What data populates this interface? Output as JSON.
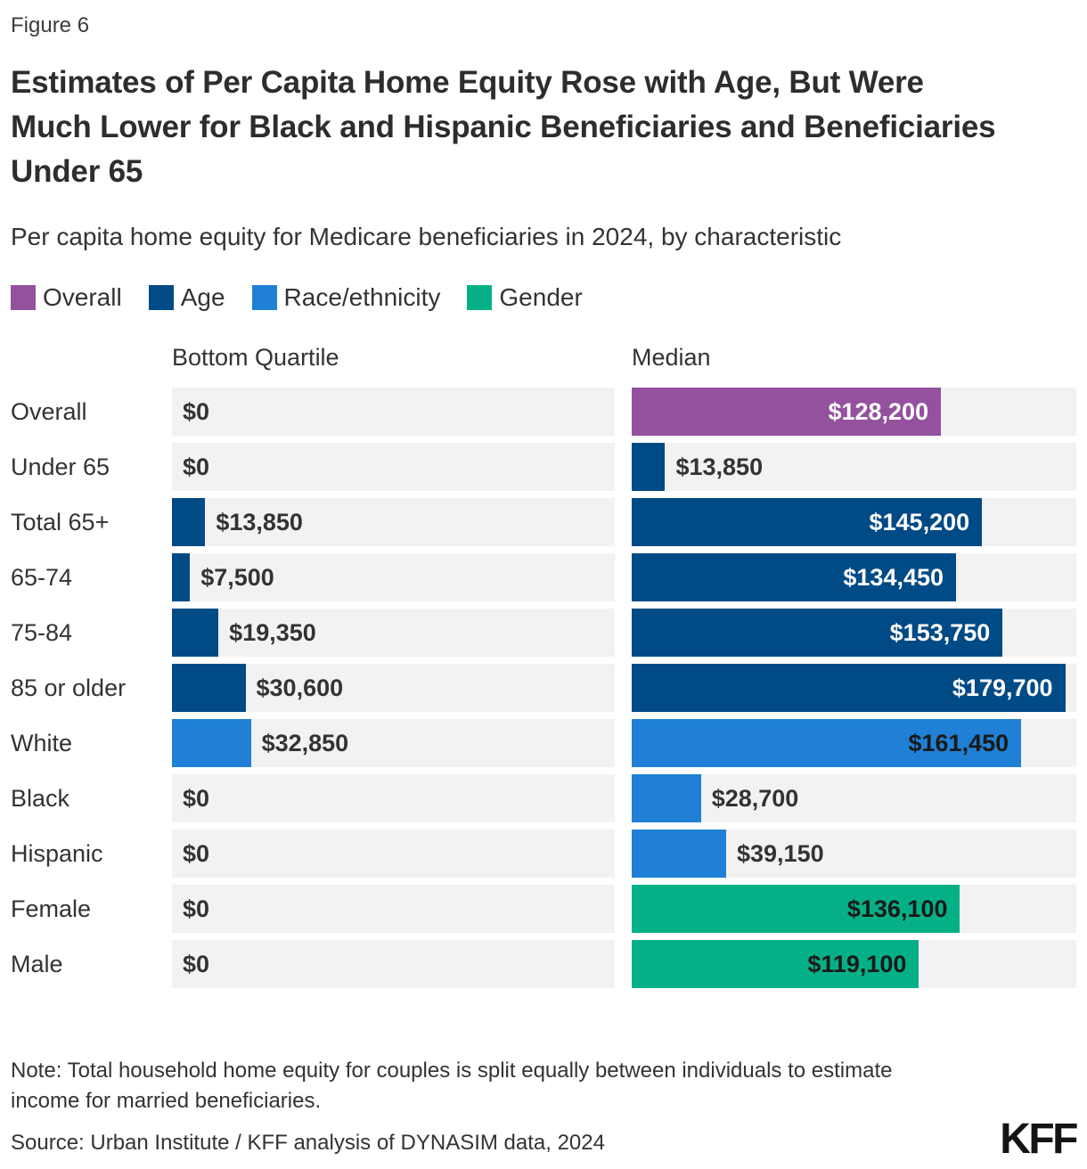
{
  "figure_label": "Figure 6",
  "title": "Estimates of Per Capita Home Equity Rose with Age, But Were Much Lower for Black and Hispanic Beneficiaries and Beneficiaries Under 65",
  "subtitle": "Per capita home equity for Medicare beneficiaries in 2024, by characteristic",
  "legend": [
    {
      "label": "Overall"
    },
    {
      "label": "Age"
    },
    {
      "label": "Race/ethnicity"
    },
    {
      "label": "Gender"
    }
  ],
  "chart_data": {
    "type": "bar",
    "orientation": "horizontal",
    "title": "Per capita home equity for Medicare beneficiaries in 2024, by characteristic",
    "categories": [
      "Overall",
      "Under 65",
      "Total 65+",
      "65-74",
      "75-84",
      "85 or older",
      "White",
      "Black",
      "Hispanic",
      "Female",
      "Male"
    ],
    "groups": [
      "Overall",
      "Age",
      "Age",
      "Age",
      "Age",
      "Age",
      "Race/ethnicity",
      "Race/ethnicity",
      "Race/ethnicity",
      "Gender",
      "Gender"
    ],
    "series": [
      {
        "name": "Bottom Quartile",
        "values": [
          0,
          0,
          13850,
          7500,
          19350,
          30600,
          32850,
          0,
          0,
          0,
          0
        ]
      },
      {
        "name": "Median",
        "values": [
          128200,
          13850,
          145200,
          134450,
          153750,
          179700,
          161450,
          28700,
          39150,
          136100,
          119100
        ]
      }
    ],
    "value_prefix": "$",
    "xlim": [
      0,
      184300
    ],
    "grid": false,
    "legend_position": "top",
    "inside_label_min_pct": 30,
    "bar_colors": {
      "Overall": "#93519E",
      "Age": "#004A85",
      "Race/ethnicity": "#1F80D5",
      "Gender": "#06B087"
    },
    "inside_label_colors": {
      "Overall": "#FFFFFF",
      "Age": "#FFFFFF",
      "Race/ethnicity": "#1A1A1A",
      "Gender": "#1A1A1A"
    },
    "track_color": "#F2F2F2"
  },
  "note": "Note: Total household home equity for couples is split equally between individuals to estimate income for married beneficiaries.",
  "source": "Source: Urban Institute / KFF analysis of DYNASIM data, 2024",
  "logo": "KFF"
}
